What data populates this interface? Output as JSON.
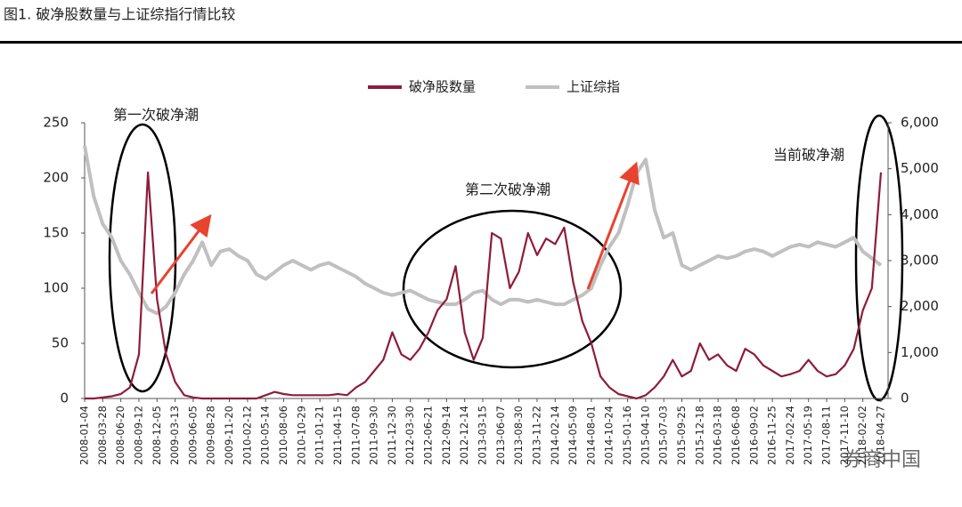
{
  "chart_data": {
    "type": "line",
    "title": "图1. 破净股数量与上证综指行情比较",
    "categories": [
      "2008-01-04",
      null,
      "2008-03-28",
      null,
      "2008-06-20",
      null,
      "2008-09-12",
      null,
      "2008-12-05",
      null,
      "2009-03-13",
      null,
      "2009-06-05",
      null,
      "2009-08-28",
      null,
      "2009-11-20",
      null,
      "2010-02-12",
      null,
      "2010-05-14",
      null,
      "2010-08-06",
      null,
      "2010-10-29",
      null,
      "2011-01-21",
      null,
      "2011-04-15",
      null,
      "2011-07-08",
      null,
      "2011-09-30",
      null,
      "2011-12-30",
      null,
      "2012-03-30",
      null,
      "2012-06-21",
      null,
      "2012-09-14",
      null,
      "2012-12-14",
      null,
      "2013-03-15",
      null,
      "2013-06-07",
      null,
      "2013-08-30",
      null,
      "2013-11-22",
      null,
      "2014-02-14",
      null,
      "2014-05-09",
      null,
      "2014-08-01",
      null,
      "2014-10-24",
      null,
      "2015-01-16",
      null,
      "2015-04-10",
      null,
      "2015-07-03",
      null,
      "2015-09-25",
      null,
      "2015-12-18",
      null,
      "2016-03-18",
      null,
      "2016-06-08",
      null,
      "2016-09-02",
      null,
      "2016-11-25",
      null,
      "2017-02-24",
      null,
      "2017-05-19",
      null,
      "2017-08-11",
      null,
      "2017-11-10",
      null,
      "2018-02-02",
      null,
      "2018-04-27"
    ],
    "series": [
      {
        "name": "破净股数量",
        "color": "#8e1c3b",
        "axis": "y",
        "values": [
          0,
          0,
          1,
          2,
          4,
          10,
          40,
          205,
          90,
          40,
          15,
          3,
          1,
          0,
          0,
          0,
          0,
          0,
          0,
          0,
          3,
          6,
          4,
          3,
          3,
          3,
          3,
          3,
          4,
          3,
          10,
          15,
          25,
          35,
          60,
          40,
          35,
          45,
          60,
          80,
          90,
          120,
          60,
          35,
          55,
          150,
          145,
          100,
          115,
          150,
          130,
          145,
          140,
          155,
          105,
          70,
          50,
          20,
          10,
          4,
          2,
          0,
          3,
          10,
          20,
          35,
          20,
          25,
          50,
          35,
          40,
          30,
          25,
          45,
          40,
          30,
          25,
          20,
          22,
          25,
          35,
          25,
          20,
          22,
          30,
          45,
          80,
          100,
          205
        ]
      },
      {
        "name": "上证综指",
        "color": "#c0c0c0",
        "axis": "y2",
        "values": [
          5500,
          4400,
          3800,
          3500,
          3000,
          2700,
          2300,
          1950,
          1850,
          2000,
          2300,
          2700,
          3000,
          3400,
          2900,
          3200,
          3250,
          3100,
          3000,
          2700,
          2600,
          2750,
          2900,
          3000,
          2900,
          2800,
          2900,
          2950,
          2850,
          2750,
          2650,
          2500,
          2400,
          2300,
          2250,
          2300,
          2350,
          2250,
          2150,
          2100,
          2050,
          2050,
          2150,
          2300,
          2350,
          2150,
          2050,
          2150,
          2150,
          2100,
          2150,
          2100,
          2050,
          2050,
          2150,
          2250,
          2400,
          2900,
          3300,
          3600,
          4200,
          4900,
          5200,
          4100,
          3500,
          3600,
          2900,
          2800,
          2900,
          3000,
          3100,
          3050,
          3100,
          3200,
          3250,
          3200,
          3100,
          3200,
          3300,
          3350,
          3300,
          3400,
          3350,
          3300,
          3400,
          3500,
          3200,
          3050,
          2900
        ]
      }
    ],
    "ylim": [
      0,
      250
    ],
    "yticks": [
      0,
      50,
      100,
      150,
      200,
      250
    ],
    "y2lim": [
      0,
      6000
    ],
    "y2ticks": [
      0,
      {
        "value": 1000,
        "label": "1,000"
      },
      {
        "value": 2000,
        "label": "2,000"
      },
      {
        "value": 3000,
        "label": "3,000"
      },
      {
        "value": 4000,
        "label": "4,000"
      },
      {
        "value": 5000,
        "label": "5,000"
      },
      {
        "value": 6000,
        "label": "6,000"
      }
    ],
    "annotations": [
      "第一次破净潮",
      "第二次破净潮",
      "当前破净潮"
    ],
    "watermark": "券商中国"
  }
}
